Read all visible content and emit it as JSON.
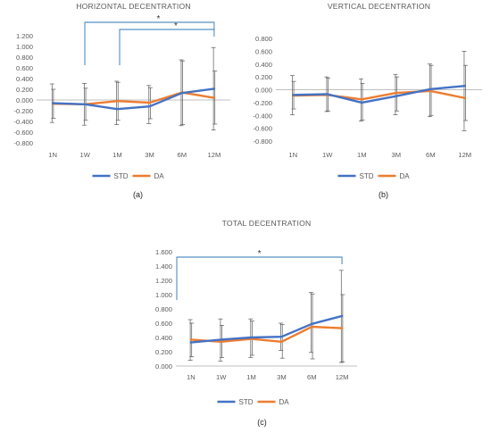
{
  "figure": {
    "panel_labels": [
      "(a)",
      "(b)",
      "(c)"
    ],
    "colors": {
      "std": "#4472C4",
      "da": "#ED7D31",
      "sig": "#2E75B6",
      "axis": "#BFBFBF",
      "text": "#595959",
      "err": "#595959"
    }
  },
  "chart_data": [
    {
      "type": "line",
      "title": "HORIZONTAL DECENTRATION",
      "categories": [
        "1N",
        "1W",
        "1M",
        "3M",
        "6M",
        "12M"
      ],
      "ylim": [
        -0.8,
        1.2
      ],
      "yticks": [
        "1.200",
        "1.000",
        "0.800",
        "0.600",
        "0.400",
        "0.200",
        "0.000",
        "-0.200",
        "-0.400",
        "-0.600",
        "-0.800"
      ],
      "grid": false,
      "legend": "bottom",
      "series": [
        {
          "name": "STD",
          "values": [
            -0.06,
            -0.08,
            -0.17,
            -0.12,
            0.13,
            0.21
          ],
          "err_low": [
            -0.42,
            -0.47,
            -0.46,
            -0.44,
            -0.48,
            -0.56
          ],
          "err_high": [
            0.3,
            0.31,
            0.35,
            0.27,
            0.75,
            0.98
          ]
        },
        {
          "name": "DA",
          "values": [
            -0.07,
            -0.08,
            -0.02,
            -0.05,
            0.14,
            0.04
          ],
          "err_low": [
            -0.34,
            -0.38,
            -0.38,
            -0.35,
            -0.46,
            -0.45
          ],
          "err_high": [
            0.2,
            0.22,
            0.33,
            0.23,
            0.73,
            0.54
          ]
        }
      ],
      "significance": [
        {
          "from": "1W",
          "to": "12M",
          "label": "*"
        },
        {
          "from": "1M",
          "to": "12M",
          "label": "*"
        }
      ]
    },
    {
      "type": "line",
      "title": "VERTICAL DECENTRATION",
      "categories": [
        "1N",
        "1W",
        "1M",
        "3M",
        "6M",
        "12M"
      ],
      "ylim": [
        -0.8,
        0.8
      ],
      "yticks": [
        "0.800",
        "0.600",
        "0.400",
        "0.200",
        "0.000",
        "-0.200",
        "-0.400",
        "-0.600",
        "-0.800"
      ],
      "grid": false,
      "legend": "bottom",
      "series": [
        {
          "name": "STD",
          "values": [
            -0.08,
            -0.07,
            -0.2,
            -0.1,
            0.01,
            0.06
          ],
          "err_low": [
            -0.39,
            -0.34,
            -0.49,
            -0.39,
            -0.42,
            -0.64
          ],
          "err_high": [
            0.22,
            0.2,
            0.17,
            0.24,
            0.4,
            0.6
          ]
        },
        {
          "name": "DA",
          "values": [
            -0.09,
            -0.08,
            -0.15,
            -0.05,
            -0.02,
            -0.13
          ],
          "err_low": [
            -0.3,
            -0.33,
            -0.47,
            -0.33,
            -0.4,
            -0.48
          ],
          "err_high": [
            0.13,
            0.18,
            0.1,
            0.2,
            0.38,
            0.38
          ]
        }
      ],
      "significance": []
    },
    {
      "type": "line",
      "title": "TOTAL DECENTRATION",
      "categories": [
        "1N",
        "1W",
        "1M",
        "3M",
        "6M",
        "12M"
      ],
      "ylim": [
        0,
        1.6
      ],
      "yticks": [
        "1.600",
        "1.400",
        "1.200",
        "1.000",
        "0.800",
        "0.600",
        "0.400",
        "0.200",
        "0.000"
      ],
      "grid": false,
      "legend": "bottom",
      "series": [
        {
          "name": "STD",
          "values": [
            0.33,
            0.37,
            0.4,
            0.41,
            0.59,
            0.7
          ],
          "err_low": [
            0.08,
            0.07,
            0.12,
            0.22,
            0.19,
            0.05
          ],
          "err_high": [
            0.65,
            0.66,
            0.66,
            0.6,
            1.03,
            1.34
          ]
        },
        {
          "name": "DA",
          "values": [
            0.37,
            0.34,
            0.38,
            0.34,
            0.55,
            0.53
          ],
          "err_low": [
            0.13,
            0.12,
            0.15,
            0.11,
            0.1,
            0.06
          ],
          "err_high": [
            0.6,
            0.57,
            0.63,
            0.58,
            1.01,
            1.0
          ]
        }
      ],
      "significance": [
        {
          "from": "1N",
          "to": "12M",
          "label": "*"
        }
      ]
    }
  ]
}
